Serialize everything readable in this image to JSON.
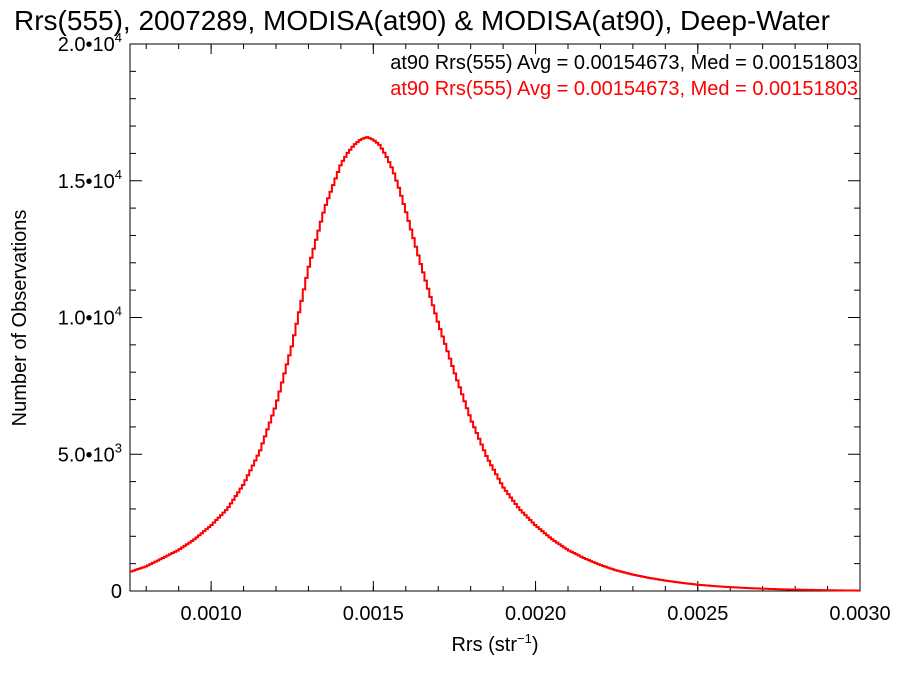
{
  "chart_data": {
    "type": "line",
    "title": "Rrs(555), 2007289, MODISA(at90) & MODISA(at90), Deep-Water",
    "xlabel": "Rrs (str",
    "xlabel_exp": "−1",
    "xlabel_close": ")",
    "ylabel": "Number of Observations",
    "xlim": [
      0.00075,
      0.003
    ],
    "ylim": [
      0,
      20000
    ],
    "x_ticks": [
      {
        "value": 0.001,
        "label": "0.0010"
      },
      {
        "value": 0.0015,
        "label": "0.0015"
      },
      {
        "value": 0.002,
        "label": "0.0020"
      },
      {
        "value": 0.0025,
        "label": "0.0025"
      },
      {
        "value": 0.003,
        "label": "0.0030"
      }
    ],
    "y_ticks": [
      {
        "value": 0,
        "label": "0",
        "exp": ""
      },
      {
        "value": 5000,
        "label": "5.0•10",
        "exp": "3"
      },
      {
        "value": 10000,
        "label": "1.0•10",
        "exp": "4"
      },
      {
        "value": 15000,
        "label": "1.5•10",
        "exp": "4"
      },
      {
        "value": 20000,
        "label": "2.0•10",
        "exp": "4"
      }
    ],
    "grid": false,
    "annotations": [
      {
        "text": "at90 Rrs(555) Avg = 0.00154673, Med = 0.00151803",
        "color": "#000000"
      },
      {
        "text": "at90 Rrs(555) Avg = 0.00154673, Med = 0.00151803",
        "color": "#ff0000"
      }
    ],
    "series": [
      {
        "color": "#ff0000",
        "x": [
          0.00075,
          0.0008,
          0.00085,
          0.0009,
          0.00095,
          0.001,
          0.00105,
          0.0011,
          0.00115,
          0.0012,
          0.00125,
          0.0013,
          0.00135,
          0.0014,
          0.00142,
          0.00144,
          0.00146,
          0.00148,
          0.0015,
          0.00152,
          0.00154,
          0.00156,
          0.00158,
          0.0016,
          0.00165,
          0.0017,
          0.00175,
          0.0018,
          0.00185,
          0.0019,
          0.00195,
          0.002,
          0.00205,
          0.0021,
          0.00215,
          0.0022,
          0.00225,
          0.0023,
          0.00235,
          0.0024,
          0.00245,
          0.0025,
          0.00255,
          0.0026,
          0.00265,
          0.0027,
          0.00275,
          0.0028,
          0.00285,
          0.0029,
          0.00295,
          0.003
        ],
        "y": [
          700,
          900,
          1200,
          1500,
          1900,
          2400,
          3000,
          3900,
          5100,
          6800,
          9000,
          11800,
          14000,
          15600,
          16000,
          16300,
          16500,
          16600,
          16500,
          16300,
          15900,
          15400,
          14700,
          13900,
          11800,
          9800,
          8000,
          6300,
          4900,
          3800,
          3000,
          2400,
          1900,
          1500,
          1200,
          950,
          750,
          600,
          480,
          380,
          300,
          230,
          180,
          140,
          110,
          85,
          65,
          50,
          40,
          30,
          20,
          15
        ]
      }
    ]
  }
}
